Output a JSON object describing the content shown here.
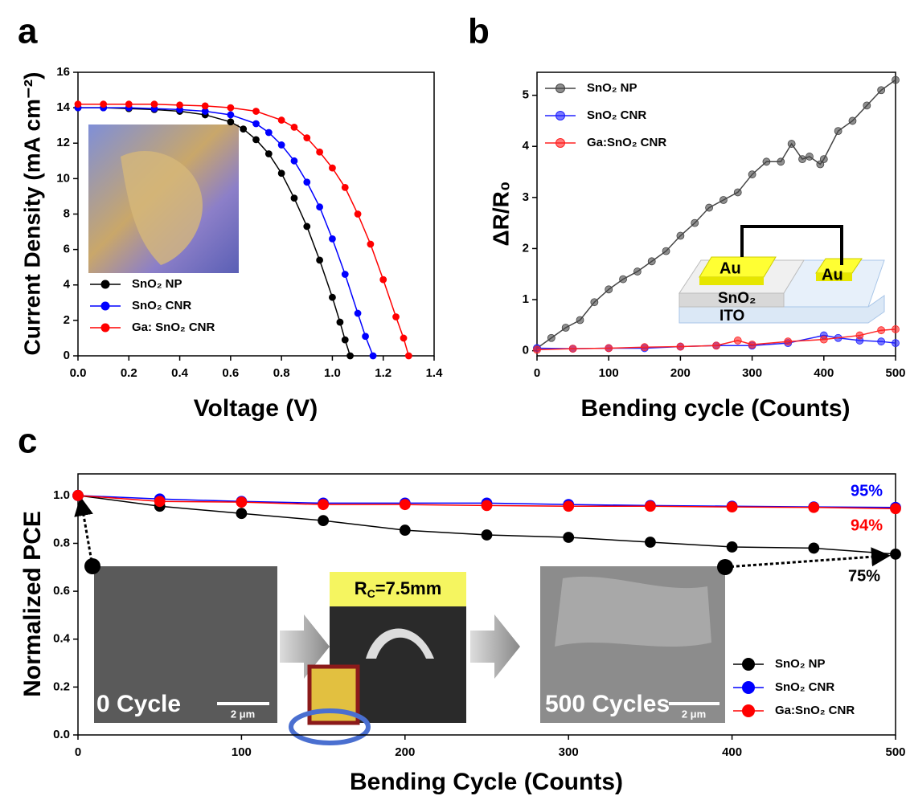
{
  "panel_labels": [
    "a",
    "b",
    "c"
  ],
  "chart_data": [
    {
      "type": "line",
      "x_label": "Voltage (V)",
      "y_label": "Current Density (mA cm⁻²)",
      "xlim": [
        0,
        1.4
      ],
      "ylim": [
        0,
        16
      ],
      "xticks": [
        {
          "value": 0,
          "label": "0.0"
        },
        0.2,
        0.4,
        0.6,
        0.8,
        {
          "value": 1,
          "label": "1.0"
        },
        1.2,
        1.4
      ],
      "yticks": [
        0,
        2,
        4,
        6,
        8,
        10,
        12,
        14,
        16
      ],
      "legend": "lower left",
      "series": [
        {
          "name": "SnO₂ NP",
          "color": "#000000",
          "x": [
            0,
            0.1,
            0.2,
            0.3,
            0.4,
            0.5,
            0.6,
            0.65,
            0.7,
            0.75,
            0.8,
            0.85,
            0.9,
            0.95,
            1.0,
            1.03,
            1.05,
            1.07
          ],
          "values": [
            14.0,
            14.0,
            13.95,
            13.9,
            13.8,
            13.6,
            13.2,
            12.8,
            12.2,
            11.4,
            10.3,
            8.9,
            7.3,
            5.4,
            3.3,
            1.9,
            0.9,
            0
          ]
        },
        {
          "name": "SnO₂ CNR",
          "color": "#0000ff",
          "x": [
            0,
            0.1,
            0.2,
            0.3,
            0.4,
            0.5,
            0.6,
            0.7,
            0.75,
            0.8,
            0.85,
            0.9,
            0.95,
            1.0,
            1.05,
            1.1,
            1.13,
            1.16
          ],
          "values": [
            14.0,
            14.0,
            14.0,
            13.95,
            13.9,
            13.8,
            13.6,
            13.1,
            12.6,
            11.9,
            11.0,
            9.8,
            8.4,
            6.6,
            4.6,
            2.4,
            1.1,
            0
          ]
        },
        {
          "name": "Ga: SnO₂ CNR",
          "color": "#ff0000",
          "x": [
            0,
            0.1,
            0.2,
            0.3,
            0.4,
            0.5,
            0.6,
            0.7,
            0.8,
            0.85,
            0.9,
            0.95,
            1.0,
            1.05,
            1.1,
            1.15,
            1.2,
            1.25,
            1.28,
            1.3
          ],
          "values": [
            14.2,
            14.2,
            14.2,
            14.2,
            14.15,
            14.1,
            14.0,
            13.8,
            13.3,
            12.9,
            12.3,
            11.5,
            10.6,
            9.5,
            8.0,
            6.3,
            4.3,
            2.2,
            1.0,
            0
          ]
        }
      ]
    },
    {
      "type": "line",
      "x_label": "Bending cycle (Counts)",
      "y_label": "ΔR/R₀",
      "xlim": [
        0,
        500
      ],
      "ylim": [
        -0.1,
        5.45
      ],
      "xticks": [
        0,
        100,
        200,
        300,
        400,
        500
      ],
      "yticks": [
        0,
        1,
        2,
        3,
        4,
        5
      ],
      "legend": "upper left",
      "inset_labels": [
        "Au",
        "Au",
        "SnO₂",
        "ITO"
      ],
      "series": [
        {
          "name": "SnO₂ NP",
          "color": "#444444",
          "x": [
            0,
            20,
            40,
            60,
            80,
            100,
            120,
            140,
            160,
            180,
            200,
            220,
            240,
            260,
            280,
            300,
            320,
            340,
            355,
            370,
            380,
            395,
            400,
            420,
            440,
            460,
            480,
            500
          ],
          "values": [
            0.05,
            0.25,
            0.45,
            0.6,
            0.95,
            1.2,
            1.4,
            1.55,
            1.75,
            1.95,
            2.25,
            2.5,
            2.8,
            2.95,
            3.1,
            3.45,
            3.7,
            3.7,
            4.05,
            3.75,
            3.8,
            3.65,
            3.75,
            4.3,
            4.5,
            4.8,
            5.1,
            5.3
          ]
        },
        {
          "name": "SnO₂ CNR",
          "color": "#2222ff",
          "x": [
            0,
            50,
            100,
            150,
            200,
            250,
            300,
            350,
            400,
            420,
            450,
            480,
            500
          ],
          "values": [
            0.05,
            0.04,
            0.05,
            0.05,
            0.08,
            0.1,
            0.1,
            0.15,
            0.3,
            0.25,
            0.2,
            0.18,
            0.15
          ]
        },
        {
          "name": "Ga:SnO₂ CNR",
          "color": "#ff2222",
          "x": [
            0,
            50,
            100,
            150,
            200,
            250,
            280,
            300,
            350,
            400,
            450,
            480,
            500
          ],
          "values": [
            0.02,
            0.04,
            0.05,
            0.07,
            0.08,
            0.1,
            0.2,
            0.12,
            0.18,
            0.22,
            0.3,
            0.4,
            0.42
          ]
        }
      ]
    },
    {
      "type": "line",
      "x_label": "Bending Cycle (Counts)",
      "y_label": "Normalized PCE",
      "xlim": [
        0,
        500
      ],
      "ylim": [
        0,
        1.09
      ],
      "xticks": [
        0,
        100,
        200,
        300,
        400,
        500
      ],
      "yticks": [
        {
          "value": 0,
          "label": "0.0"
        },
        0.2,
        0.4,
        0.6,
        0.8,
        {
          "value": 1,
          "label": "1.0"
        }
      ],
      "legend": "lower right",
      "x": [
        0,
        50,
        100,
        150,
        200,
        250,
        300,
        350,
        400,
        450,
        500
      ],
      "series": [
        {
          "name": "SnO₂ NP",
          "color": "#000000",
          "values": [
            1.0,
            0.955,
            0.925,
            0.895,
            0.855,
            0.835,
            0.825,
            0.805,
            0.785,
            0.78,
            0.755
          ]
        },
        {
          "name": "SnO₂ CNR",
          "color": "#0000ff",
          "values": [
            1.0,
            0.985,
            0.975,
            0.968,
            0.968,
            0.968,
            0.962,
            0.958,
            0.955,
            0.952,
            0.95
          ]
        },
        {
          "name": "Ga:SnO₂ CNR",
          "color": "#ff0000",
          "values": [
            1.0,
            0.975,
            0.972,
            0.962,
            0.962,
            0.958,
            0.955,
            0.955,
            0.952,
            0.95,
            0.945
          ]
        }
      ],
      "annotations": [
        {
          "text": "95%",
          "color": "#0000ff"
        },
        {
          "text": "94%",
          "color": "#ff0000"
        },
        {
          "text": "75%",
          "color": "#000000"
        }
      ],
      "inset_labels": {
        "left": "0 Cycle",
        "right": "500 Cycles",
        "scale_bar": "2 μm",
        "radius_main": "R",
        "radius_sub": "C",
        "radius_rest": "=7.5mm"
      }
    }
  ]
}
